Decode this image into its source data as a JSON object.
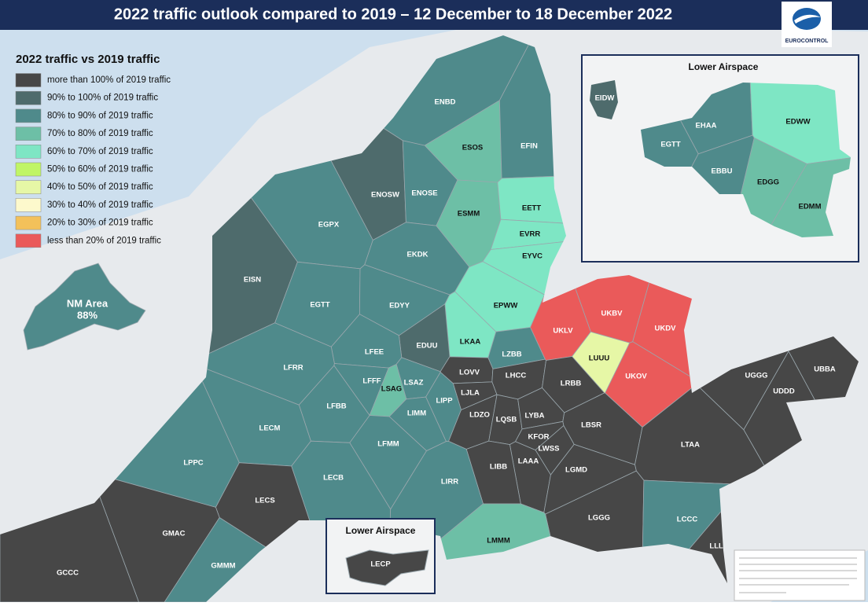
{
  "title": "2022 traffic outlook compared to 2019 – 12 December to 18 December 2022",
  "logo_text": "EUROCONTROL",
  "legend": {
    "title": "2022 traffic vs 2019 traffic",
    "items": [
      {
        "label": "more than 100% of 2019 traffic",
        "color": "#474747"
      },
      {
        "label": "90% to 100% of 2019 traffic",
        "color": "#4e6b6c"
      },
      {
        "label": "80% to 90% of 2019 traffic",
        "color": "#4f8a8b"
      },
      {
        "label": "70% to 80% of 2019 traffic",
        "color": "#6dbfa6"
      },
      {
        "label": "60% to 70% of 2019 traffic",
        "color": "#7ee6c4"
      },
      {
        "label": "50% to 60% of 2019 traffic",
        "color": "#c0f566"
      },
      {
        "label": "40% to 50% of 2019 traffic",
        "color": "#e6f7a6"
      },
      {
        "label": "30% to 40% of 2019 traffic",
        "color": "#fdf9cc"
      },
      {
        "label": "20% to 30% of 2019 traffic",
        "color": "#f3c15a"
      },
      {
        "label": "less than 20% of 2019 traffic",
        "color": "#ea5a5a"
      }
    ]
  },
  "map": {
    "regions": [
      {
        "label": "ENBD",
        "color": "#4f8a8b"
      },
      {
        "label": "ESOS",
        "color": "#6dbfa6"
      },
      {
        "label": "EFIN",
        "color": "#4f8a8b"
      },
      {
        "label": "ENOSW",
        "color": "#4e6b6c"
      },
      {
        "label": "ENOSE",
        "color": "#4f8a8b"
      },
      {
        "label": "EGPX",
        "color": "#4f8a8b"
      },
      {
        "label": "ESMM",
        "color": "#6dbfa6"
      },
      {
        "label": "EETT",
        "color": "#7ee6c4"
      },
      {
        "label": "EVRR",
        "color": "#7ee6c4"
      },
      {
        "label": "EYVC",
        "color": "#7ee6c4"
      },
      {
        "label": "EKDK",
        "color": "#4f8a8b"
      },
      {
        "label": "EISN",
        "color": "#4e6b6c"
      },
      {
        "label": "EGTT",
        "color": "#4f8a8b"
      },
      {
        "label": "EDYY",
        "color": "#4f8a8b"
      },
      {
        "label": "EPWW",
        "color": "#7ee6c4"
      },
      {
        "label": "UKBV",
        "color": "#ea5a5a"
      },
      {
        "label": "UKLV",
        "color": "#ea5a5a"
      },
      {
        "label": "UKDV",
        "color": "#ea5a5a"
      },
      {
        "label": "LKAA",
        "color": "#7ee6c4"
      },
      {
        "label": "EDUU",
        "color": "#4e6b6c"
      },
      {
        "label": "LZBB",
        "color": "#4f8a8b"
      },
      {
        "label": "LFEE",
        "color": "#4f8a8b"
      },
      {
        "label": "LUUU",
        "color": "#e6f7a6"
      },
      {
        "label": "LFRR",
        "color": "#4f8a8b"
      },
      {
        "label": "LOVV",
        "color": "#474747"
      },
      {
        "label": "LHCC",
        "color": "#474747"
      },
      {
        "label": "LRBB",
        "color": "#474747"
      },
      {
        "label": "UKOV",
        "color": "#ea5a5a"
      },
      {
        "label": "LFFF",
        "color": "#4f8a8b"
      },
      {
        "label": "LSAZ",
        "color": "#4f8a8b"
      },
      {
        "label": "LSAG",
        "color": "#6dbfa6"
      },
      {
        "label": "UGGG",
        "color": "#474747"
      },
      {
        "label": "UBBA",
        "color": "#474747"
      },
      {
        "label": "LJLA",
        "color": "#474747"
      },
      {
        "label": "UDDD",
        "color": "#474747"
      },
      {
        "label": "LFBB",
        "color": "#4f8a8b"
      },
      {
        "label": "LIPP",
        "color": "#4f8a8b"
      },
      {
        "label": "LDZO",
        "color": "#474747"
      },
      {
        "label": "LQSB",
        "color": "#474747"
      },
      {
        "label": "LYBA",
        "color": "#474747"
      },
      {
        "label": "LIMM",
        "color": "#4f8a8b"
      },
      {
        "label": "LBSR",
        "color": "#474747"
      },
      {
        "label": "LECM",
        "color": "#4f8a8b"
      },
      {
        "label": "KFOR",
        "color": "#474747"
      },
      {
        "label": "LWSS",
        "color": "#474747"
      },
      {
        "label": "LTAA",
        "color": "#474747"
      },
      {
        "label": "LFMM",
        "color": "#4f8a8b"
      },
      {
        "label": "LAAA",
        "color": "#474747"
      },
      {
        "label": "LPPC",
        "color": "#4f8a8b"
      },
      {
        "label": "LIBB",
        "color": "#474747"
      },
      {
        "label": "LGMD",
        "color": "#474747"
      },
      {
        "label": "LECB",
        "color": "#4f8a8b"
      },
      {
        "label": "LIRR",
        "color": "#4f8a8b"
      },
      {
        "label": "LECS",
        "color": "#474747"
      },
      {
        "label": "LGGG",
        "color": "#474747"
      },
      {
        "label": "LCCC",
        "color": "#4f8a8b"
      },
      {
        "label": "GMAC",
        "color": "#474747"
      },
      {
        "label": "LMMM",
        "color": "#6dbfa6"
      },
      {
        "label": "LLLL",
        "color": "#474747"
      },
      {
        "label": "GCCC",
        "color": "#474747"
      },
      {
        "label": "GMMM",
        "color": "#4f8a8b"
      }
    ],
    "nm_area": {
      "label": "NM Area",
      "value_label": "88%",
      "color": "#4f8a8b"
    }
  },
  "inset_upper": {
    "title": "Lower Airspace",
    "regions": [
      {
        "label": "EIDW",
        "color": "#4e6b6c"
      },
      {
        "label": "EHAA",
        "color": "#4f8a8b"
      },
      {
        "label": "EDWW",
        "color": "#7ee6c4"
      },
      {
        "label": "EGTT",
        "color": "#4f8a8b"
      },
      {
        "label": "EBBU",
        "color": "#4f8a8b"
      },
      {
        "label": "EDGG",
        "color": "#6dbfa6"
      },
      {
        "label": "EDMM",
        "color": "#6dbfa6"
      }
    ]
  },
  "inset_lower": {
    "title": "Lower Airspace",
    "regions": [
      {
        "label": "LECP",
        "color": "#474747"
      }
    ]
  }
}
